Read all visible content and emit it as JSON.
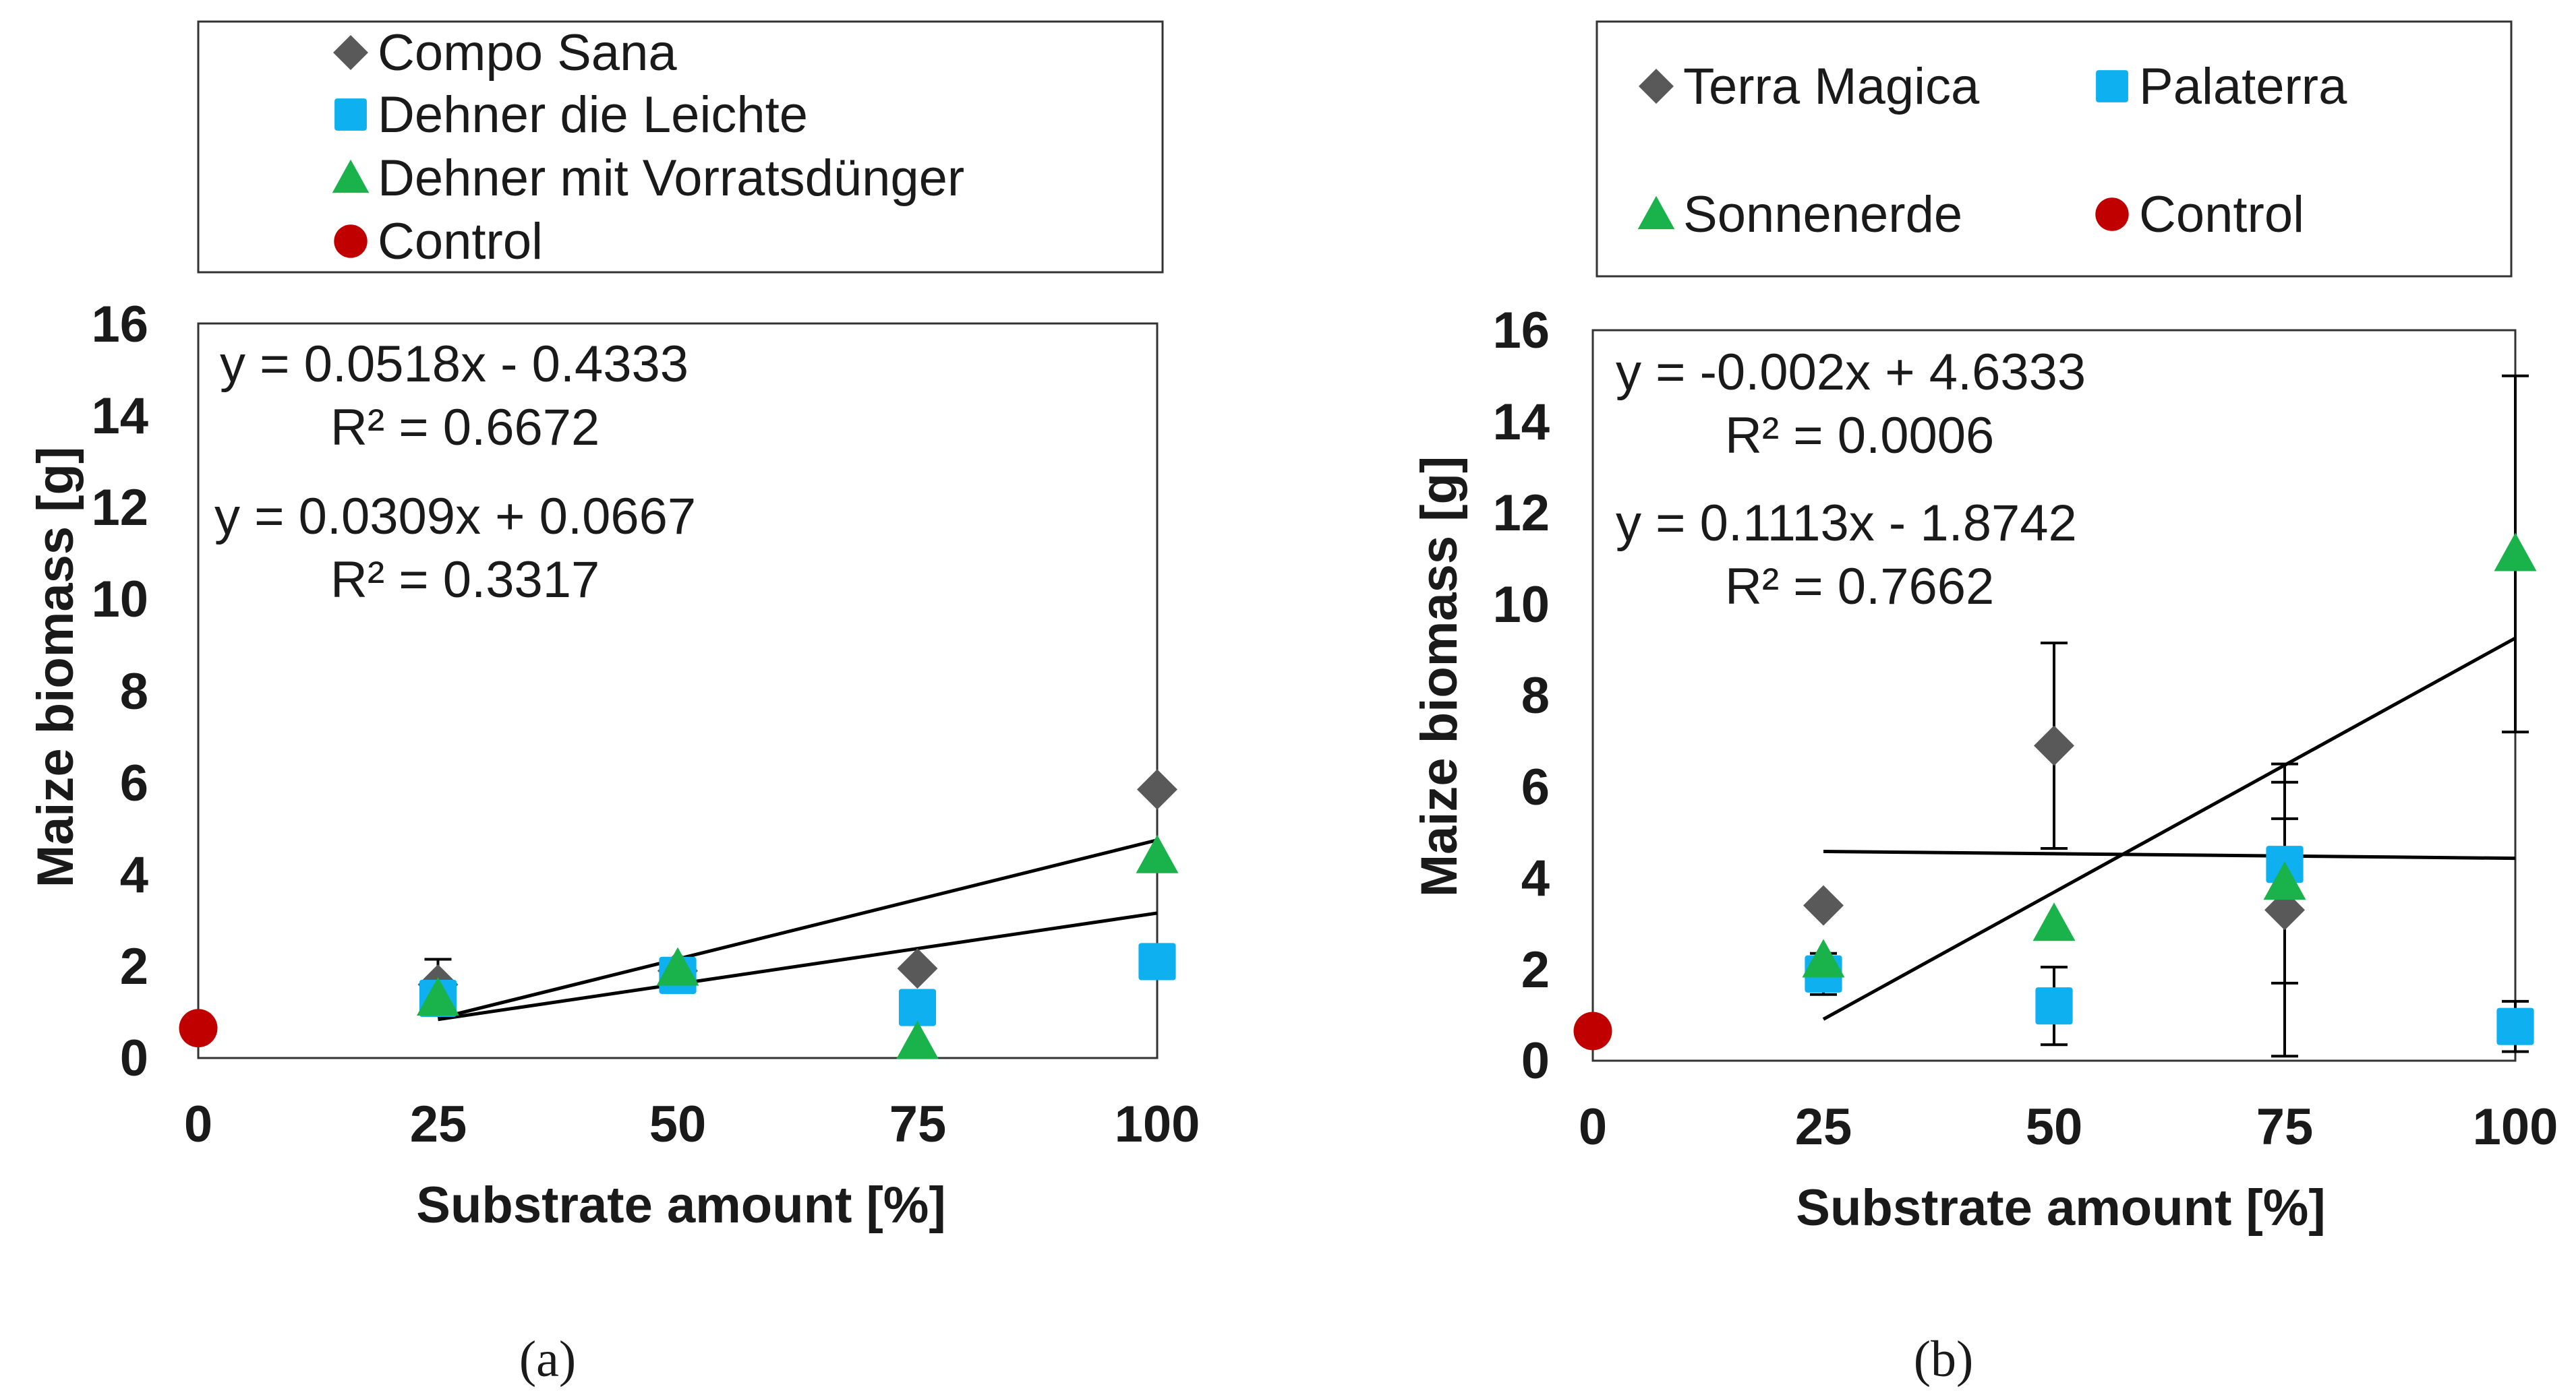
{
  "colors": {
    "compo": "#595959",
    "dehner_leichte": "#0eb0f0",
    "dehner_vorrat": "#19b24b",
    "control": "#c00000",
    "terra": "#595959",
    "palaterra": "#0eb0f0",
    "sonnenerde": "#19b24b",
    "axis": "#000000",
    "text": "#1a1a1a"
  },
  "chart_data": [
    {
      "type": "scatter",
      "panel_label": "(a)",
      "xlabel": "Substrate amount [%]",
      "ylabel": "Maize biomass [g]",
      "xlim": [
        0,
        100
      ],
      "ylim": [
        0,
        16
      ],
      "xticks": [
        "0",
        "25",
        "50",
        "75",
        "100"
      ],
      "yticks": [
        "0",
        "2",
        "4",
        "6",
        "8",
        "10",
        "12",
        "14",
        "16"
      ],
      "legend_position": "top",
      "legend_columns": 1,
      "series": [
        {
          "name": "Compo Sana",
          "marker": "diamond",
          "color_key": "compo",
          "x": [
            25,
            50,
            75,
            100
          ],
          "y": [
            1.6,
            1.9,
            1.95,
            5.85
          ],
          "err": [
            0.55,
            0,
            0,
            0
          ]
        },
        {
          "name": "Dehner die Leichte",
          "marker": "square",
          "color_key": "dehner_leichte",
          "x": [
            25,
            50,
            75,
            100
          ],
          "y": [
            1.3,
            1.8,
            1.1,
            2.1
          ],
          "err": [
            0,
            0,
            0,
            0
          ]
        },
        {
          "name": "Dehner mit Vorratsdünger",
          "marker": "triangle",
          "color_key": "dehner_vorrat",
          "x": [
            25,
            50,
            75,
            100
          ],
          "y": [
            1.3,
            1.95,
            0.35,
            4.4
          ],
          "err": [
            0,
            0,
            0,
            0
          ]
        },
        {
          "name": "Control",
          "marker": "circle",
          "color_key": "control",
          "x": [
            0
          ],
          "y": [
            0.65
          ],
          "err": [
            0
          ]
        }
      ],
      "trendlines": [
        {
          "slope": 0.0518,
          "intercept": -0.4333,
          "x_range": [
            25,
            100
          ]
        },
        {
          "slope": 0.0309,
          "intercept": 0.0667,
          "x_range": [
            25,
            100
          ]
        }
      ],
      "annotations": [
        {
          "equation": "y = 0.0518x - 0.4333",
          "r2": "R² = 0.6672"
        },
        {
          "equation": "y = 0.0309x + 0.0667",
          "r2": "R² = 0.3317"
        }
      ]
    },
    {
      "type": "scatter",
      "panel_label": "(b)",
      "xlabel": "Substrate amount [%]",
      "ylabel": "Maize biomass [g]",
      "xlim": [
        0,
        100
      ],
      "ylim": [
        0,
        16
      ],
      "xticks": [
        "0",
        "25",
        "50",
        "75",
        "100"
      ],
      "yticks": [
        "0",
        "2",
        "4",
        "6",
        "8",
        "10",
        "12",
        "14",
        "16"
      ],
      "legend_position": "top",
      "legend_columns": 2,
      "series": [
        {
          "name": "Terra Magica",
          "marker": "diamond",
          "color_key": "terra",
          "x": [
            25,
            50,
            75
          ],
          "y": [
            3.4,
            6.9,
            3.3
          ],
          "err": [
            0,
            2.25,
            3.2
          ]
        },
        {
          "name": "Palaterra",
          "marker": "square",
          "color_key": "palaterra",
          "x": [
            25,
            50,
            75,
            100
          ],
          "y": [
            1.9,
            1.2,
            4.3,
            0.75
          ],
          "err": [
            0.45,
            0.85,
            1.0,
            0.55
          ]
        },
        {
          "name": "Sonnenerde",
          "marker": "triangle",
          "color_key": "sonnenerde",
          "x": [
            25,
            50,
            75,
            100
          ],
          "y": [
            2.2,
            3.0,
            3.9,
            11.1
          ],
          "err": [
            0,
            0,
            2.2,
            3.9
          ]
        },
        {
          "name": "Control",
          "marker": "circle",
          "color_key": "control",
          "x": [
            0
          ],
          "y": [
            0.65
          ],
          "err": [
            0
          ]
        }
      ],
      "trendlines": [
        {
          "slope": -0.002,
          "intercept": 4.6333,
          "x_range": [
            25,
            100
          ]
        },
        {
          "slope": 0.1113,
          "intercept": -1.8742,
          "x_range": [
            25,
            100
          ]
        }
      ],
      "annotations": [
        {
          "equation": "y = -0.002x + 4.6333",
          "r2": "R² = 0.0006"
        },
        {
          "equation": "y = 0.1113x - 1.8742",
          "r2": "R² = 0.7662"
        }
      ]
    }
  ]
}
